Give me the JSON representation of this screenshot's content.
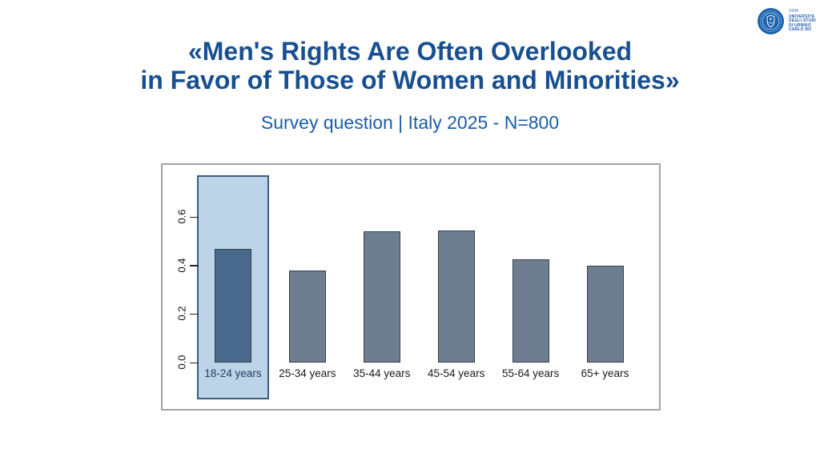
{
  "slide": {
    "title_line1": "«Men's Rights Are Often Overlooked",
    "title_line2": "in Favor of Those of Women and Minorities»",
    "subtitle": "Survey question | Italy 2025 - N=800"
  },
  "logo": {
    "year": "1506",
    "name_line1": "UNIVERSITÀ",
    "name_line2": "DEGLI STUDI",
    "name_line3": "DI URBINO",
    "name_line4": "CARLO BO"
  },
  "chart_data": {
    "type": "bar",
    "categories": [
      "18-24 years",
      "25-34 years",
      "35-44 years",
      "45-54 years",
      "55-64 years",
      "65+ years"
    ],
    "values": [
      0.47,
      0.38,
      0.54,
      0.545,
      0.425,
      0.4
    ],
    "highlighted_category": "18-24 years",
    "highlighted_index": 0,
    "title": "",
    "xlabel": "",
    "ylabel": "",
    "yticks": [
      "0.0",
      "0.2",
      "0.4",
      "0.6"
    ],
    "ytick_values": [
      0.0,
      0.2,
      0.4,
      0.6
    ],
    "ylim": [
      0,
      0.78
    ],
    "grid": false,
    "legend": false
  },
  "colors": {
    "title_blue": "#174F90",
    "subtitle_blue": "#1B5CA6",
    "bar_fill": "#6E7E90",
    "bar_border": "#333F4B",
    "highlight_bar_fill": "#48698C",
    "band_fill": "#BDD3E8",
    "band_border": "#3E5C7C",
    "highlight_label": "#1F3A63",
    "label_black": "#1a1a1a",
    "box_border": "#A3A3A3",
    "logo_blue": "#1B63AE"
  }
}
